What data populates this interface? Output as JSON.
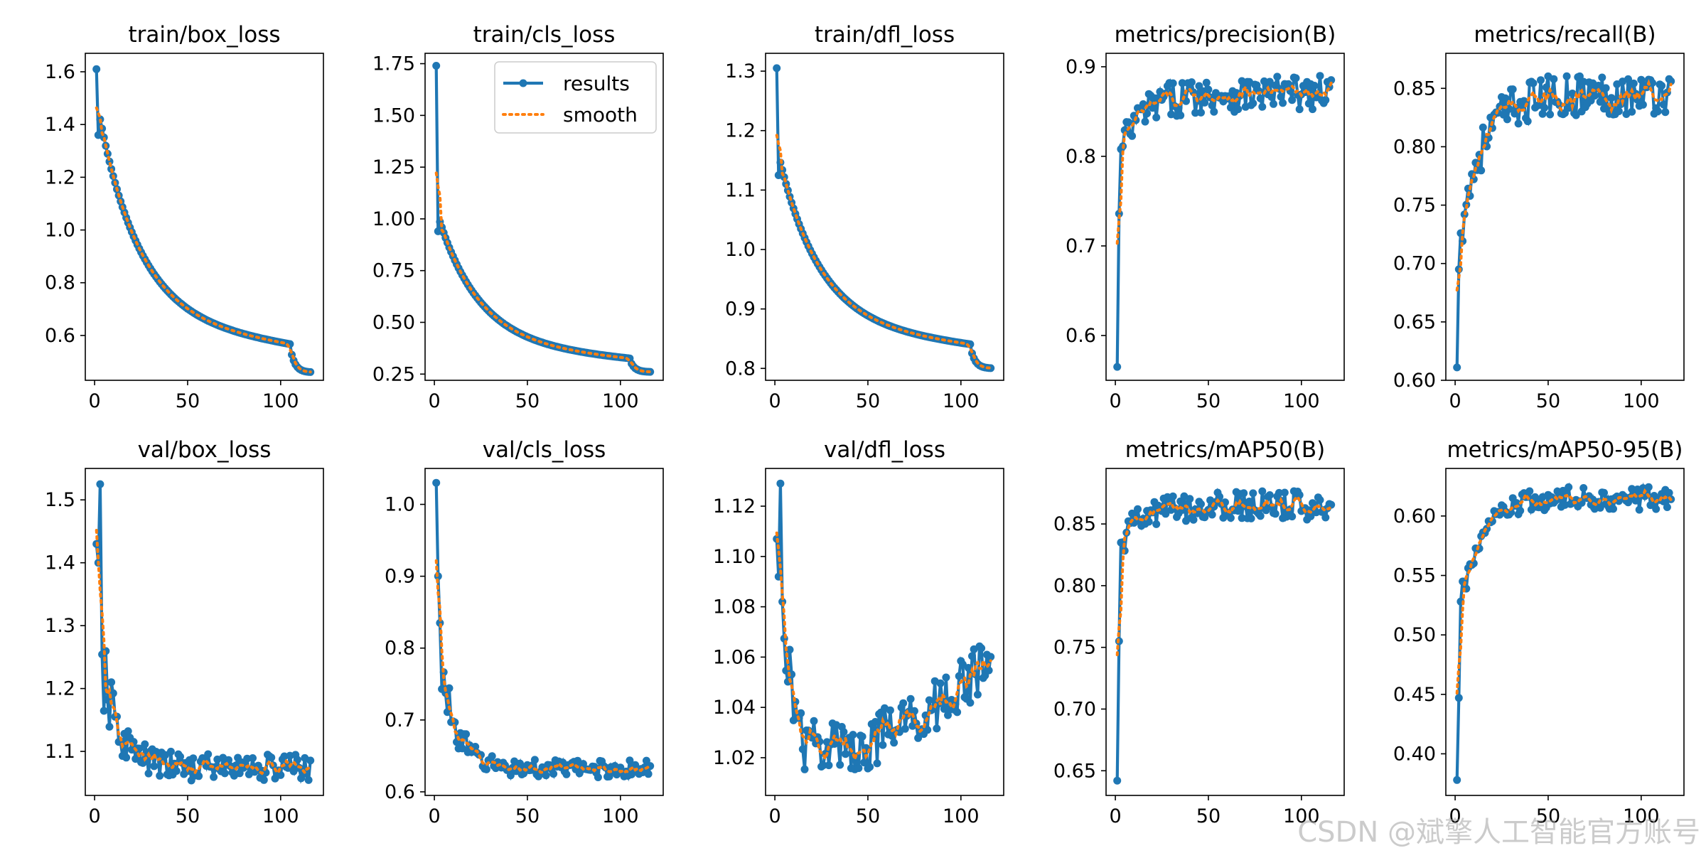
{
  "colors": {
    "results": "#1f77b4",
    "smooth": "#ff7f0e",
    "axis": "#000000",
    "background": "#ffffff"
  },
  "watermark": "CSDN @斌擎人工智能官方账号",
  "legend": {
    "results": "results",
    "smooth": "smooth",
    "subplot": "train/cls_loss",
    "placement": "upper-right"
  },
  "chart_data": [
    {
      "type": "line",
      "title": "train/box_loss",
      "xlim": [
        -5,
        123
      ],
      "ylim": [
        0.43,
        1.67
      ],
      "xticks": [
        0,
        50,
        100
      ],
      "xtick_labels": [
        "0",
        "50",
        "100"
      ],
      "yticks": [
        0.6,
        0.8,
        1.0,
        1.2,
        1.4,
        1.6
      ],
      "ytick_labels": [
        "0.6",
        "0.8",
        "1.0",
        "1.2",
        "1.4",
        "1.6"
      ],
      "style": "exp_decay",
      "params": [
        0.46,
        1.61,
        1.36,
        0.56,
        0.0,
        0.0
      ]
    },
    {
      "type": "line",
      "title": "train/cls_loss",
      "xlim": [
        -5,
        123
      ],
      "ylim": [
        0.22,
        1.8
      ],
      "xticks": [
        0,
        50,
        100
      ],
      "xtick_labels": [
        "0",
        "50",
        "100"
      ],
      "yticks": [
        0.25,
        0.5,
        0.75,
        1.0,
        1.25,
        1.5,
        1.75
      ],
      "ytick_labels": [
        "0.25",
        "0.50",
        "0.75",
        "1.00",
        "1.25",
        "1.50",
        "1.75"
      ],
      "style": "exp_decay",
      "params": [
        0.26,
        1.74,
        0.94,
        0.32,
        0.0,
        0.0
      ],
      "legend": true
    },
    {
      "type": "line",
      "title": "train/dfl_loss",
      "xlim": [
        -5,
        123
      ],
      "ylim": [
        0.78,
        1.33
      ],
      "xticks": [
        0,
        50,
        100
      ],
      "xtick_labels": [
        "0",
        "50",
        "100"
      ],
      "yticks": [
        0.8,
        0.9,
        1.0,
        1.1,
        1.2,
        1.3
      ],
      "ytick_labels": [
        "0.8",
        "0.9",
        "1.0",
        "1.1",
        "1.2",
        "1.3"
      ],
      "style": "exp_decay",
      "params": [
        0.8,
        1.305,
        1.125,
        0.838,
        0.0,
        0.0
      ]
    },
    {
      "type": "line",
      "title": "metrics/precision(B)",
      "xlim": [
        -5,
        123
      ],
      "ylim": [
        0.55,
        0.915
      ],
      "xticks": [
        0,
        50,
        100
      ],
      "xtick_labels": [
        "0",
        "50",
        "100"
      ],
      "yticks": [
        0.6,
        0.7,
        0.8,
        0.9
      ],
      "ytick_labels": [
        "0.6",
        "0.7",
        "0.8",
        "0.9"
      ],
      "style": "exp_rise",
      "params": [
        0.565,
        0.736,
        0.808,
        0.87,
        0.02,
        0.0
      ]
    },
    {
      "type": "line",
      "title": "metrics/recall(B)",
      "xlim": [
        -5,
        123
      ],
      "ylim": [
        0.6,
        0.88
      ],
      "xticks": [
        0,
        50,
        100
      ],
      "xtick_labels": [
        "0",
        "50",
        "100"
      ],
      "yticks": [
        0.6,
        0.65,
        0.7,
        0.75,
        0.8,
        0.85
      ],
      "ytick_labels": [
        "0.60",
        "0.65",
        "0.70",
        "0.75",
        "0.80",
        "0.85"
      ],
      "style": "exp_rise",
      "params": [
        0.611,
        0.695,
        0.726,
        0.845,
        0.018,
        0.0
      ]
    },
    {
      "type": "line",
      "title": "val/box_loss",
      "xlim": [
        -5,
        123
      ],
      "ylim": [
        1.03,
        1.55
      ],
      "xticks": [
        0,
        50,
        100
      ],
      "xtick_labels": [
        "0",
        "50",
        "100"
      ],
      "yticks": [
        1.1,
        1.2,
        1.3,
        1.4,
        1.5
      ],
      "ytick_labels": [
        "1.1",
        "1.2",
        "1.3",
        "1.4",
        "1.5"
      ],
      "style": "noisy_decay",
      "params": [
        1.43,
        1.4,
        1.525,
        1.075,
        0.022,
        0.0
      ]
    },
    {
      "type": "line",
      "title": "val/cls_loss",
      "xlim": [
        -5,
        123
      ],
      "ylim": [
        0.595,
        1.05
      ],
      "xticks": [
        0,
        50,
        100
      ],
      "xtick_labels": [
        "0",
        "50",
        "100"
      ],
      "yticks": [
        0.6,
        0.7,
        0.8,
        0.9,
        1.0
      ],
      "ytick_labels": [
        "0.6",
        "0.7",
        "0.8",
        "0.9",
        "1.0"
      ],
      "style": "noisy_decay",
      "params": [
        1.03,
        0.9,
        0.835,
        0.632,
        0.012,
        0.0
      ]
    },
    {
      "type": "line",
      "title": "val/dfl_loss",
      "xlim": [
        -5,
        123
      ],
      "ylim": [
        1.005,
        1.135
      ],
      "xticks": [
        0,
        50,
        100
      ],
      "xtick_labels": [
        "0",
        "50",
        "100"
      ],
      "yticks": [
        1.02,
        1.04,
        1.06,
        1.08,
        1.1,
        1.12
      ],
      "ytick_labels": [
        "1.02",
        "1.04",
        "1.06",
        "1.08",
        "1.10",
        "1.12"
      ],
      "style": "dip_rise",
      "params": [
        1.107,
        1.092,
        1.129,
        1.058,
        0.011,
        1.025
      ]
    },
    {
      "type": "line",
      "title": "metrics/mAP50(B)",
      "xlim": [
        -5,
        123
      ],
      "ylim": [
        0.63,
        0.895
      ],
      "xticks": [
        0,
        50,
        100
      ],
      "xtick_labels": [
        "0",
        "50",
        "100"
      ],
      "yticks": [
        0.65,
        0.7,
        0.75,
        0.8,
        0.85
      ],
      "ytick_labels": [
        "0.65",
        "0.70",
        "0.75",
        "0.80",
        "0.85"
      ],
      "style": "exp_rise",
      "params": [
        0.642,
        0.755,
        0.835,
        0.865,
        0.012,
        0.0
      ]
    },
    {
      "type": "line",
      "title": "metrics/mAP50-95(B)",
      "xlim": [
        -5,
        123
      ],
      "ylim": [
        0.365,
        0.64
      ],
      "xticks": [
        0,
        50,
        100
      ],
      "xtick_labels": [
        "0",
        "50",
        "100"
      ],
      "yticks": [
        0.4,
        0.45,
        0.5,
        0.55,
        0.6
      ],
      "ytick_labels": [
        "0.40",
        "0.45",
        "0.50",
        "0.55",
        "0.60"
      ],
      "style": "exp_rise",
      "params": [
        0.378,
        0.447,
        0.528,
        0.615,
        0.01,
        0.0
      ]
    }
  ]
}
